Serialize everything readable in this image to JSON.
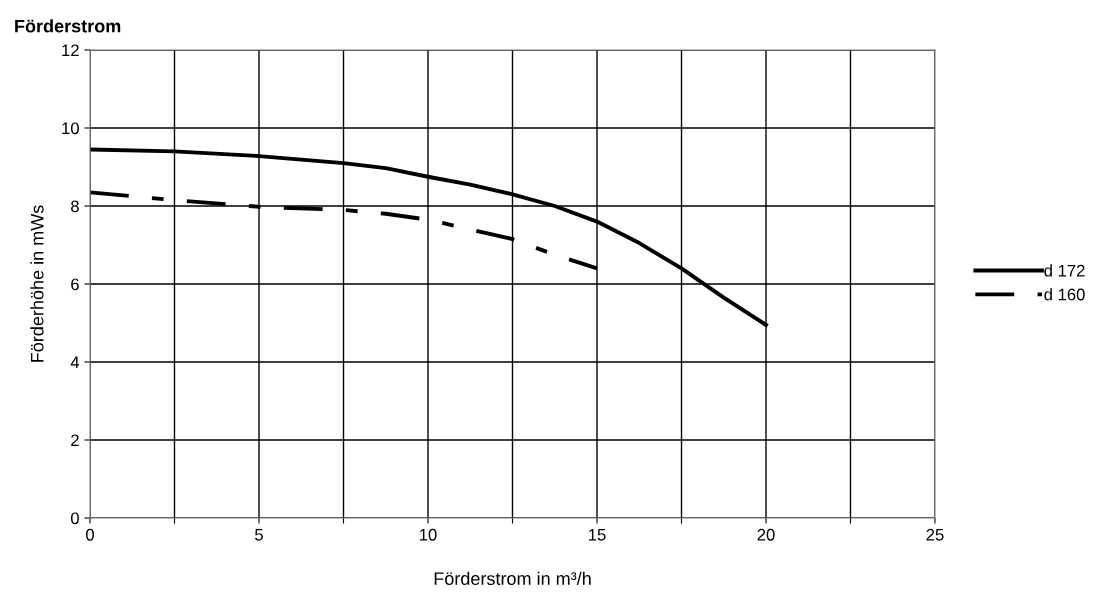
{
  "chart_data": {
    "type": "line",
    "title": "Förderstrom",
    "xlabel": "Förderstrom in m³/h",
    "ylabel": "Förderhöhe in mWs",
    "xlim": [
      0,
      25
    ],
    "ylim": [
      0,
      12
    ],
    "xticks": [
      0,
      {
        "value": 2.5,
        "label": null
      },
      5,
      {
        "value": 7.5,
        "label": null
      },
      10,
      {
        "value": 12.5,
        "label": null
      },
      15,
      {
        "value": 17.5,
        "label": null
      },
      20,
      {
        "value": 22.5,
        "label": null
      },
      25
    ],
    "yticks": [
      0,
      2,
      4,
      6,
      8,
      10,
      12
    ],
    "grid": true,
    "legend": "right",
    "marker": "none",
    "series": [
      {
        "name": "d 172",
        "color": "#000000",
        "line_style": "solid",
        "x": [
          0,
          2.5,
          5,
          7.5,
          8.75,
          10,
          11.25,
          12.5,
          13.75,
          15,
          16.25,
          17.5,
          18.75,
          20
        ],
        "values": [
          9.45,
          9.4,
          9.28,
          9.1,
          8.97,
          8.75,
          8.55,
          8.3,
          8.0,
          7.6,
          7.05,
          6.4,
          5.65,
          4.95
        ]
      },
      {
        "name": "d 160",
        "color": "#000000",
        "line_style": "dashed",
        "x": [
          0,
          2.5,
          5,
          7.5,
          8.75,
          10,
          11.25,
          12.5,
          13.75,
          15
        ],
        "values": [
          8.35,
          8.15,
          7.98,
          7.9,
          7.8,
          7.65,
          7.4,
          7.15,
          6.75,
          6.4
        ]
      }
    ]
  }
}
